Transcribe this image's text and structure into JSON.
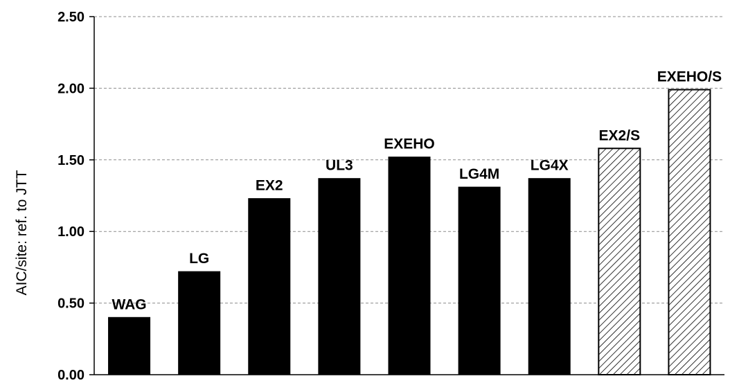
{
  "chart_data": {
    "type": "bar",
    "title": "",
    "xlabel": "",
    "ylabel": "AIC/site: ref. to JTT",
    "ylim": [
      0,
      2.5
    ],
    "yticks": [
      "0.00",
      "0.50",
      "1.00",
      "1.50",
      "2.00",
      "2.50"
    ],
    "ytick_values": [
      0,
      0.5,
      1.0,
      1.5,
      2.0,
      2.5
    ],
    "grid": "horizontal dashed",
    "categories": [
      "WAG",
      "LG",
      "EX2",
      "UL3",
      "EXEHO",
      "LG4M",
      "LG4X",
      "EX2/S",
      "EXEHO/S"
    ],
    "values": [
      0.4,
      0.72,
      1.23,
      1.37,
      1.52,
      1.31,
      1.37,
      1.58,
      1.99
    ],
    "bar_labels": [
      "WAG",
      "LG",
      "EX2",
      "UL3",
      "EXEHO",
      "LG4M",
      "LG4X",
      "EX2/S",
      "EXEHO/S"
    ],
    "bar_styles": [
      "solid",
      "solid",
      "solid",
      "solid",
      "solid",
      "solid",
      "solid",
      "hatched",
      "hatched"
    ],
    "colors": {
      "bar_fill": "#000000",
      "hatch_line": "#000000",
      "hatch_background": "#ffffff",
      "grid": "#8c8c8c",
      "axis": "#000000"
    }
  }
}
